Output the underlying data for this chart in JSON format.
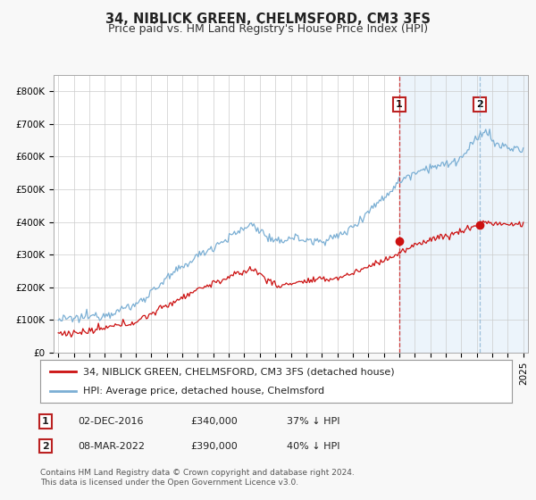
{
  "title": "34, NIBLICK GREEN, CHELMSFORD, CM3 3FS",
  "subtitle": "Price paid vs. HM Land Registry's House Price Index (HPI)",
  "ylim": [
    0,
    850000
  ],
  "yticks": [
    0,
    100000,
    200000,
    300000,
    400000,
    500000,
    600000,
    700000,
    800000
  ],
  "ytick_labels": [
    "£0",
    "£100K",
    "£200K",
    "£300K",
    "£400K",
    "£500K",
    "£600K",
    "£700K",
    "£800K"
  ],
  "x_start_year": 1995,
  "x_end_year": 2025,
  "hpi_color": "#7bafd4",
  "price_color": "#cc1111",
  "marker_color": "#cc1111",
  "shade_color": "#d6e8f7",
  "vline1_color": "#cc1111",
  "vline2_color": "#8ab4d4",
  "annotation1_year": 2017.0,
  "annotation2_year": 2022.2,
  "sale1_price": 340000,
  "sale2_price": 390000,
  "legend_label_price": "34, NIBLICK GREEN, CHELMSFORD, CM3 3FS (detached house)",
  "legend_label_hpi": "HPI: Average price, detached house, Chelmsford",
  "table_row1": [
    "1",
    "02-DEC-2016",
    "£340,000",
    "37% ↓ HPI"
  ],
  "table_row2": [
    "2",
    "08-MAR-2022",
    "£390,000",
    "40% ↓ HPI"
  ],
  "footnote": "Contains HM Land Registry data © Crown copyright and database right 2024.\nThis data is licensed under the Open Government Licence v3.0.",
  "background_color": "#f8f8f8",
  "plot_bg_color": "#ffffff",
  "grid_color": "#cccccc",
  "title_fontsize": 10.5,
  "subtitle_fontsize": 9,
  "tick_fontsize": 7.5,
  "legend_fontsize": 8,
  "table_fontsize": 8,
  "footnote_fontsize": 6.5
}
